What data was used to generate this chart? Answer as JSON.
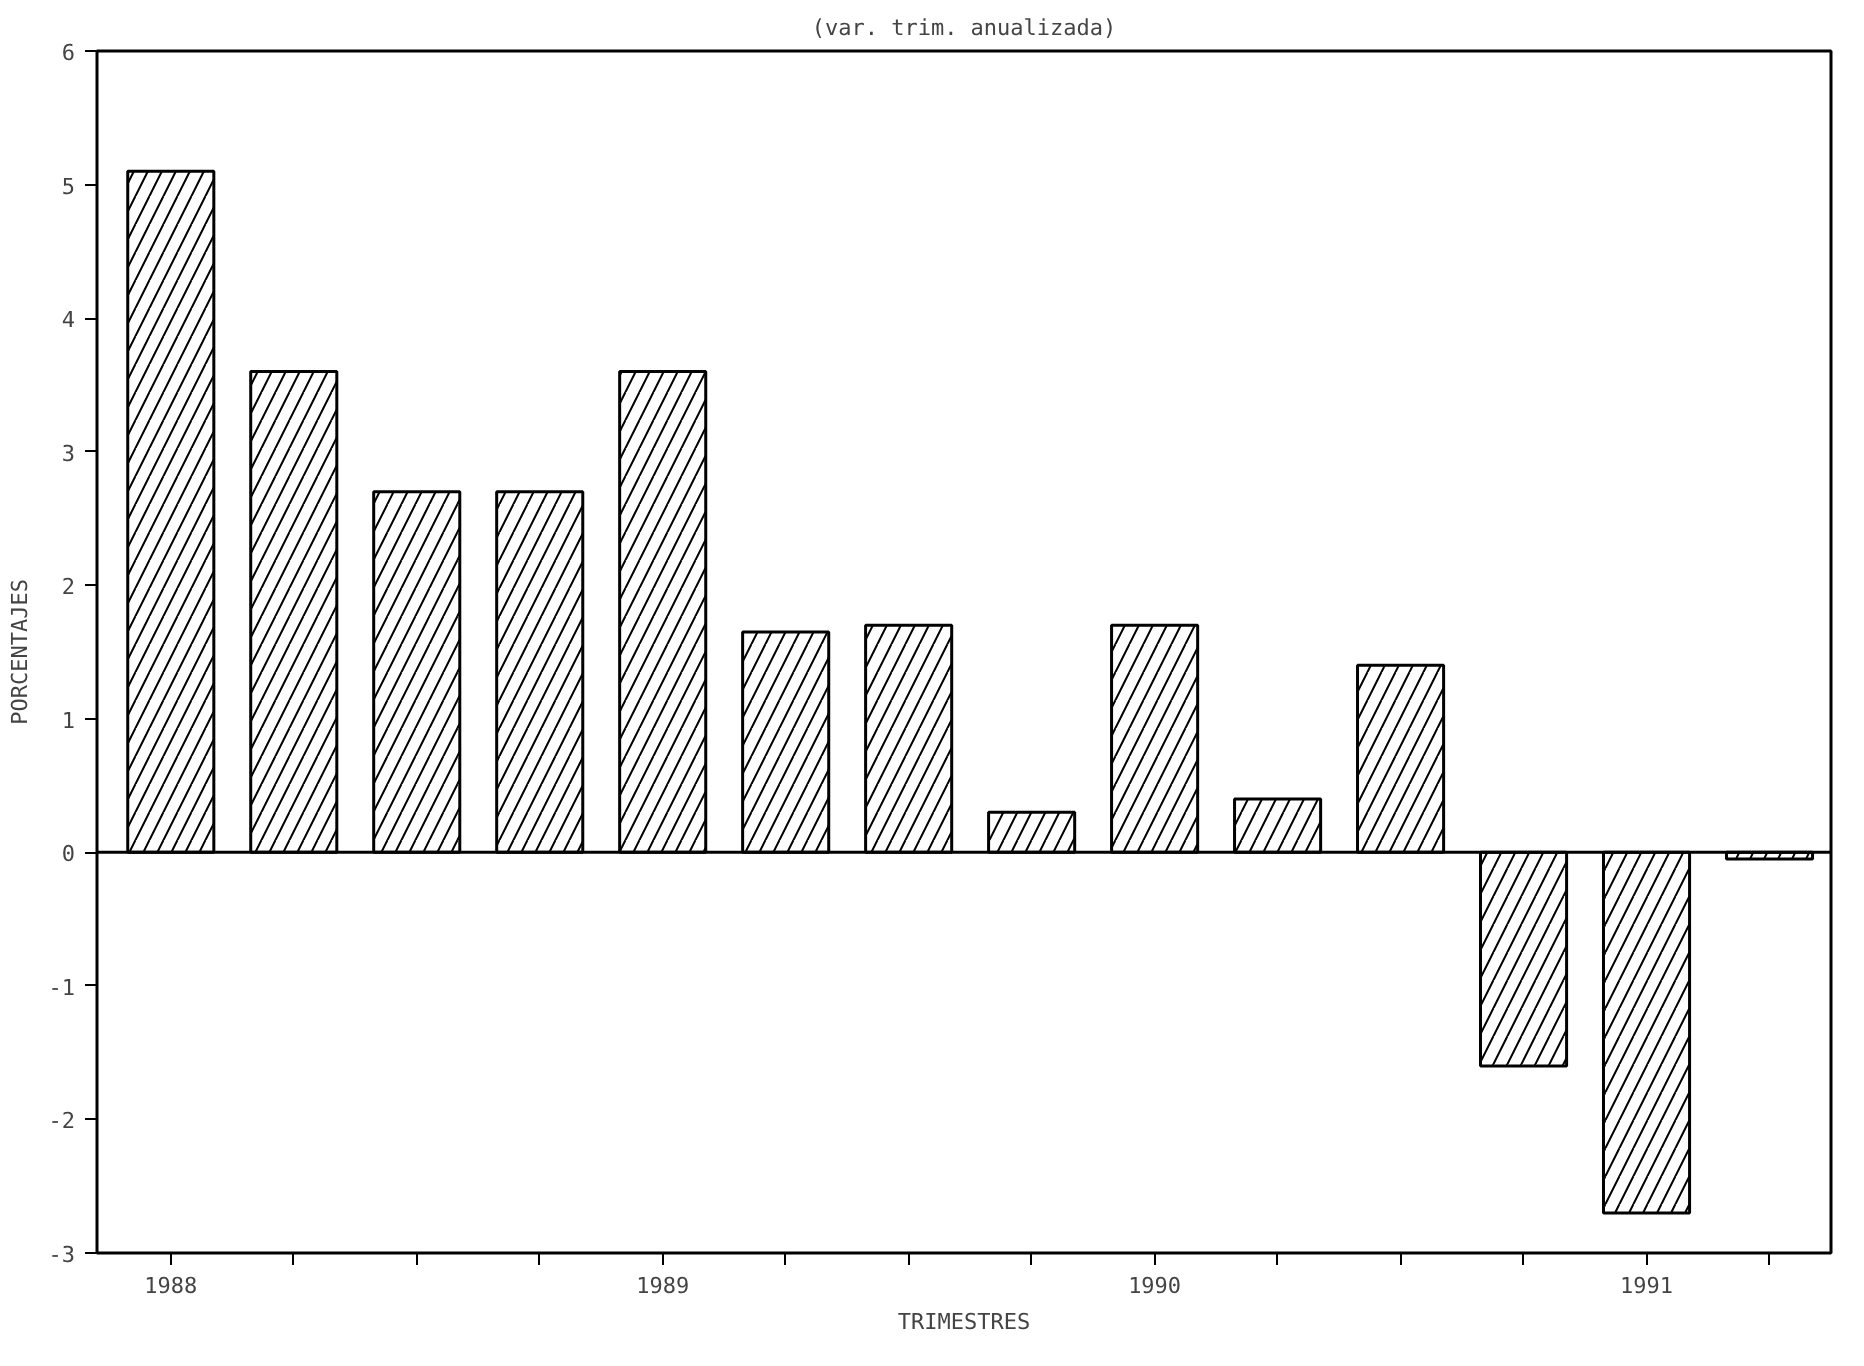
{
  "chart_data": {
    "type": "bar",
    "title": "(var. trim. anualizada)",
    "xlabel": "TRIMESTRES",
    "ylabel": "PORCENTAJES",
    "categories": [
      "1988",
      null,
      null,
      null,
      "1989",
      null,
      null,
      null,
      "1990",
      null,
      null,
      null,
      "1991",
      null
    ],
    "values": [
      5.1,
      3.6,
      2.7,
      2.7,
      3.6,
      1.65,
      1.7,
      0.3,
      1.7,
      0.4,
      1.4,
      -1.6,
      -2.7,
      -0.05
    ],
    "color": "#ffffff",
    "ylim": [
      -3,
      6
    ],
    "yticks": [
      -3,
      -2,
      -1,
      0,
      1,
      2,
      3,
      4,
      5,
      6
    ],
    "ref_lines": [
      {
        "axis": "y",
        "value": 0,
        "label": null
      }
    ],
    "grid": false
  }
}
